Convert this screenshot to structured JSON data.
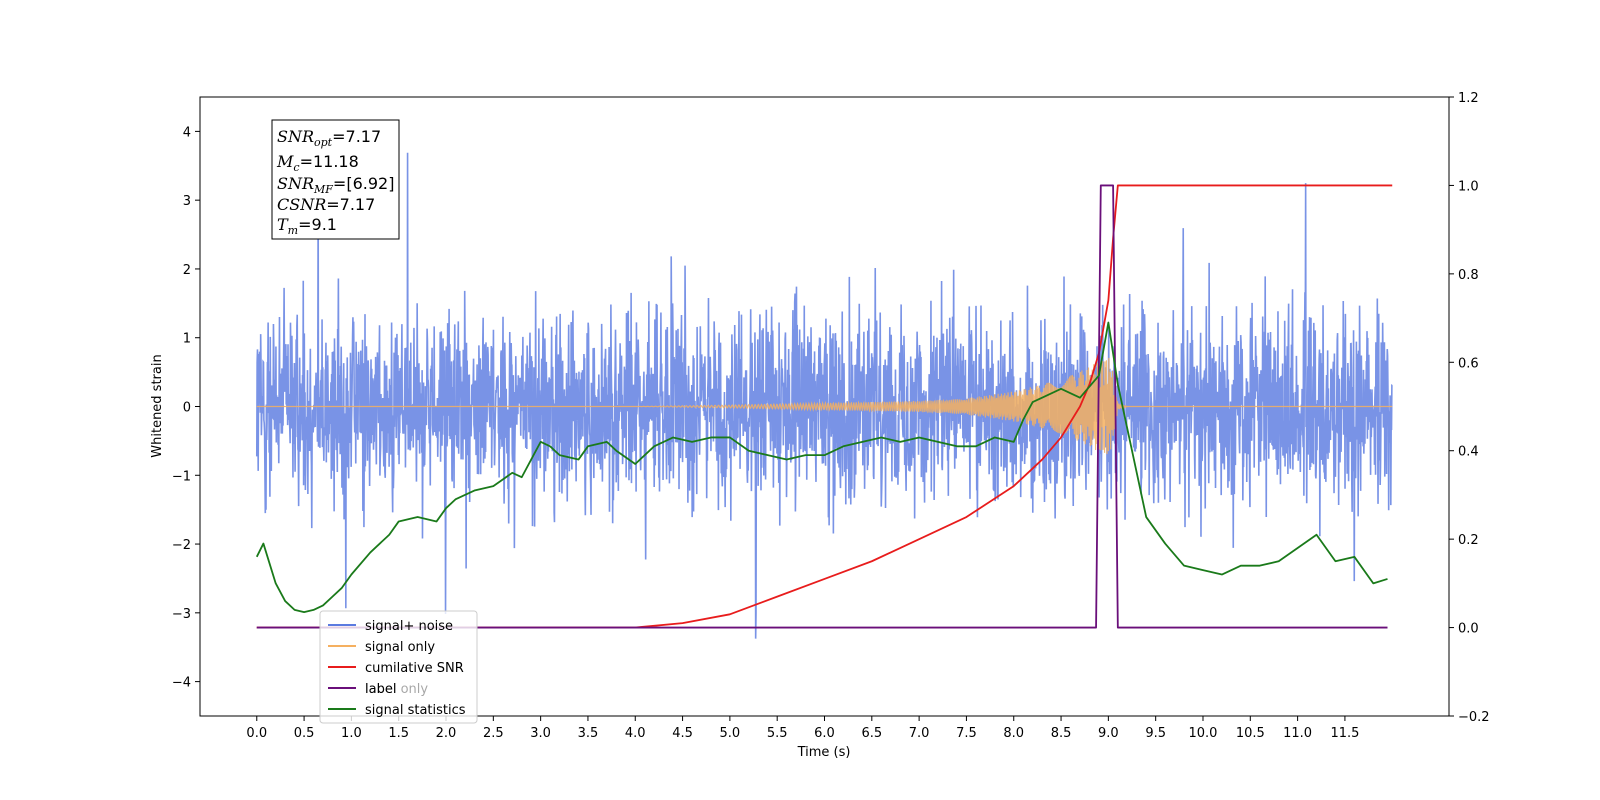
{
  "chart_data": {
    "type": "line",
    "xlabel": "Time (s)",
    "ylabel": "Whitened strain",
    "xlim": [
      -0.6,
      12.6
    ],
    "ylim": [
      -4.5,
      4.5
    ],
    "y2lim": [
      -0.2,
      1.2
    ],
    "x_ticks": [
      "0.0",
      "0.5",
      "1.0",
      "1.5",
      "2.0",
      "2.5",
      "3.0",
      "3.5",
      "4.0",
      "4.5",
      "5.0",
      "5.5",
      "6.0",
      "6.5",
      "7.0",
      "7.5",
      "8.0",
      "8.5",
      "9.0",
      "9.5",
      "10.0",
      "10.5",
      "11.0",
      "11.5"
    ],
    "y_ticks": [
      "4",
      "3",
      "2",
      "1",
      "0",
      "−1",
      "−2",
      "−3",
      "−4"
    ],
    "y2_ticks": [
      "1.2",
      "1.0",
      "0.8",
      "0.6",
      "0.4",
      "0.2",
      "0.0",
      "−0.2"
    ],
    "grid": false,
    "legend_position": "lower-left",
    "info_box": {
      "snr_opt": {
        "main": "SNR",
        "sub": "opt",
        "value": "=7.17"
      },
      "mc": {
        "main": "M",
        "sub": "c",
        "value": "=11.18"
      },
      "snr_mf": {
        "main": "SNR",
        "sub": "MF",
        "value": "=[6.92]"
      },
      "csnr": {
        "main": "CSNR",
        "value": "=7.17"
      },
      "tm": {
        "main": "T",
        "sub": "m",
        "value": "=9.1"
      }
    },
    "series": [
      {
        "name": "signal+ noise",
        "color": "#5b7be0",
        "axis": "left",
        "description_envelope": {
          "x": [
            0.0,
            12.0
          ],
          "typical_range": [
            -2.0,
            2.0
          ],
          "peaks": [
            4.1,
            -3.8
          ]
        }
      },
      {
        "name": "signal only",
        "color": "#f5b060",
        "axis": "left",
        "envelope": {
          "x": [
            0.0,
            4.0,
            5.0,
            6.0,
            7.0,
            7.5,
            8.0,
            8.3,
            8.6,
            8.8,
            9.0,
            9.05,
            9.1,
            9.2,
            12.0
          ],
          "amp": [
            0.0,
            0.0,
            0.02,
            0.05,
            0.08,
            0.12,
            0.22,
            0.32,
            0.45,
            0.58,
            0.75,
            0.5,
            0.05,
            0.0,
            0.0
          ]
        }
      },
      {
        "name": "cumilative SNR",
        "color": "#e81c1c",
        "axis": "right",
        "x": [
          0.0,
          4.0,
          4.5,
          5.0,
          5.5,
          6.0,
          6.5,
          7.0,
          7.5,
          8.0,
          8.3,
          8.5,
          8.7,
          8.8,
          8.9,
          9.0,
          9.05,
          9.1,
          12.0
        ],
        "values": [
          0.0,
          0.0,
          0.01,
          0.03,
          0.07,
          0.11,
          0.15,
          0.2,
          0.25,
          0.32,
          0.38,
          0.43,
          0.5,
          0.55,
          0.62,
          0.74,
          0.88,
          1.0,
          1.0
        ]
      },
      {
        "name": "label",
        "color": "#6a0f7a",
        "axis": "right",
        "x": [
          0.0,
          8.87,
          8.92,
          9.05,
          9.1,
          11.95
        ],
        "values": [
          0.0,
          0.0,
          1.0,
          1.0,
          0.0,
          0.0
        ]
      },
      {
        "name": "label only",
        "color": "#6a0f7a",
        "axis": "right",
        "x": [],
        "values": []
      },
      {
        "name": "signal statistics",
        "color": "#1a7a1a",
        "axis": "right",
        "x": [
          0.0,
          0.07,
          0.2,
          0.3,
          0.4,
          0.5,
          0.6,
          0.7,
          0.8,
          0.9,
          1.0,
          1.2,
          1.4,
          1.5,
          1.7,
          1.9,
          2.0,
          2.1,
          2.3,
          2.5,
          2.7,
          2.8,
          2.9,
          3.0,
          3.1,
          3.2,
          3.4,
          3.5,
          3.7,
          3.8,
          4.0,
          4.2,
          4.4,
          4.6,
          4.8,
          5.0,
          5.2,
          5.4,
          5.6,
          5.8,
          6.0,
          6.2,
          6.4,
          6.6,
          6.8,
          7.0,
          7.2,
          7.4,
          7.6,
          7.8,
          8.0,
          8.1,
          8.2,
          8.3,
          8.5,
          8.7,
          8.9,
          9.0,
          9.1,
          9.2,
          9.3,
          9.4,
          9.6,
          9.8,
          10.0,
          10.2,
          10.4,
          10.6,
          10.8,
          11.0,
          11.2,
          11.4,
          11.6,
          11.8,
          11.95
        ],
        "values": [
          0.16,
          0.19,
          0.1,
          0.06,
          0.04,
          0.035,
          0.04,
          0.05,
          0.07,
          0.09,
          0.12,
          0.17,
          0.21,
          0.24,
          0.25,
          0.24,
          0.27,
          0.29,
          0.31,
          0.32,
          0.35,
          0.34,
          0.38,
          0.42,
          0.41,
          0.39,
          0.38,
          0.41,
          0.42,
          0.4,
          0.37,
          0.41,
          0.43,
          0.42,
          0.43,
          0.43,
          0.4,
          0.39,
          0.38,
          0.39,
          0.39,
          0.41,
          0.42,
          0.43,
          0.42,
          0.43,
          0.42,
          0.41,
          0.41,
          0.43,
          0.42,
          0.47,
          0.51,
          0.52,
          0.54,
          0.52,
          0.57,
          0.69,
          0.55,
          0.45,
          0.35,
          0.25,
          0.19,
          0.14,
          0.13,
          0.12,
          0.14,
          0.14,
          0.15,
          0.18,
          0.21,
          0.15,
          0.16,
          0.1,
          0.11
        ]
      }
    ]
  }
}
